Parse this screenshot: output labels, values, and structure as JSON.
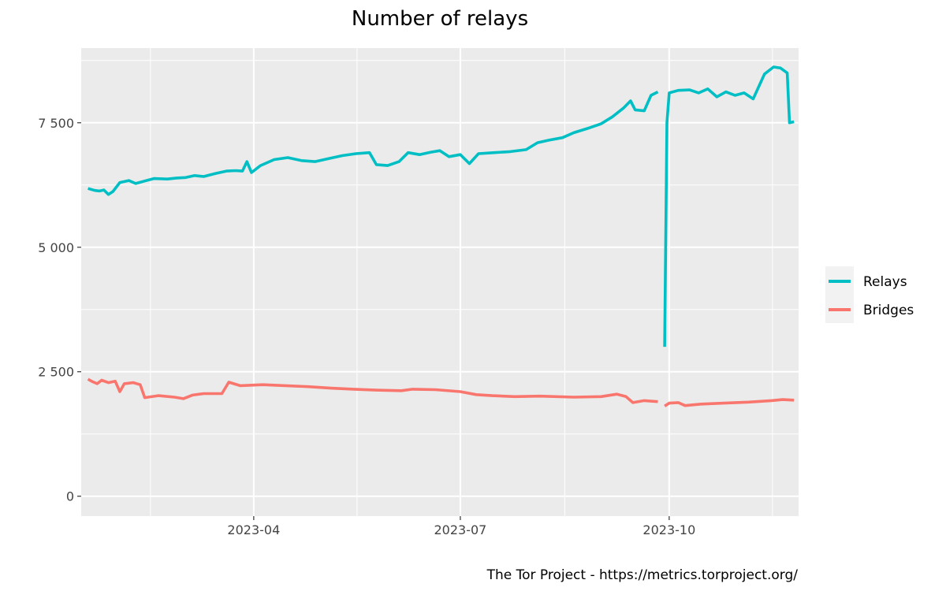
{
  "chart_data": {
    "type": "line",
    "title": "Number of relays",
    "caption": "The Tor Project - https://metrics.torproject.org/",
    "xlabel": "",
    "ylabel": "",
    "xlim": [
      "2023-01-15",
      "2023-11-27"
    ],
    "ylim": [
      -400,
      9000
    ],
    "x_ticks": [
      "2023-04-01",
      "2023-07-01",
      "2023-10-01"
    ],
    "x_tick_labels": [
      "2023-04",
      "2023-07",
      "2023-10"
    ],
    "y_ticks": [
      0,
      2500,
      5000,
      7500
    ],
    "y_tick_labels": [
      "0",
      "2 500",
      "5 000",
      "7 500"
    ],
    "grid": true,
    "legend_position": "right",
    "series": [
      {
        "name": "Relays",
        "color": "#00BFC4",
        "segments": [
          [
            [
              "2023-01-18",
              6180
            ],
            [
              "2023-01-21",
              6140
            ],
            [
              "2023-01-23",
              6130
            ],
            [
              "2023-01-25",
              6150
            ],
            [
              "2023-01-27",
              6060
            ],
            [
              "2023-01-29",
              6120
            ],
            [
              "2023-02-01",
              6300
            ],
            [
              "2023-02-05",
              6340
            ],
            [
              "2023-02-08",
              6280
            ],
            [
              "2023-02-12",
              6330
            ],
            [
              "2023-02-16",
              6380
            ],
            [
              "2023-02-22",
              6370
            ],
            [
              "2023-02-26",
              6390
            ],
            [
              "2023-03-02",
              6400
            ],
            [
              "2023-03-06",
              6440
            ],
            [
              "2023-03-10",
              6420
            ],
            [
              "2023-03-15",
              6480
            ],
            [
              "2023-03-20",
              6530
            ],
            [
              "2023-03-24",
              6540
            ],
            [
              "2023-03-27",
              6530
            ],
            [
              "2023-03-29",
              6720
            ],
            [
              "2023-03-31",
              6500
            ],
            [
              "2023-04-04",
              6640
            ],
            [
              "2023-04-10",
              6760
            ],
            [
              "2023-04-16",
              6800
            ],
            [
              "2023-04-22",
              6740
            ],
            [
              "2023-04-28",
              6720
            ],
            [
              "2023-05-04",
              6780
            ],
            [
              "2023-05-10",
              6840
            ],
            [
              "2023-05-16",
              6880
            ],
            [
              "2023-05-22",
              6900
            ],
            [
              "2023-05-25",
              6660
            ],
            [
              "2023-05-30",
              6640
            ],
            [
              "2023-06-04",
              6720
            ],
            [
              "2023-06-08",
              6900
            ],
            [
              "2023-06-13",
              6860
            ],
            [
              "2023-06-18",
              6910
            ],
            [
              "2023-06-22",
              6940
            ],
            [
              "2023-06-26",
              6820
            ],
            [
              "2023-07-01",
              6860
            ],
            [
              "2023-07-05",
              6680
            ],
            [
              "2023-07-09",
              6880
            ],
            [
              "2023-07-16",
              6900
            ],
            [
              "2023-07-23",
              6920
            ],
            [
              "2023-07-30",
              6960
            ],
            [
              "2023-08-04",
              7100
            ],
            [
              "2023-08-09",
              7150
            ],
            [
              "2023-08-15",
              7200
            ],
            [
              "2023-08-20",
              7300
            ],
            [
              "2023-08-27",
              7400
            ],
            [
              "2023-09-01",
              7480
            ],
            [
              "2023-09-06",
              7620
            ],
            [
              "2023-09-11",
              7800
            ],
            [
              "2023-09-14",
              7940
            ],
            [
              "2023-09-16",
              7760
            ],
            [
              "2023-09-20",
              7740
            ],
            [
              "2023-09-23",
              8050
            ],
            [
              "2023-09-26",
              8120
            ]
          ],
          [
            [
              "2023-09-29",
              3000
            ],
            [
              "2023-09-30",
              7500
            ],
            [
              "2023-10-01",
              8100
            ],
            [
              "2023-10-05",
              8150
            ],
            [
              "2023-10-10",
              8160
            ],
            [
              "2023-10-14",
              8100
            ],
            [
              "2023-10-18",
              8180
            ],
            [
              "2023-10-22",
              8020
            ],
            [
              "2023-10-26",
              8120
            ],
            [
              "2023-10-30",
              8050
            ],
            [
              "2023-11-03",
              8100
            ],
            [
              "2023-11-07",
              7980
            ],
            [
              "2023-11-12",
              8480
            ],
            [
              "2023-11-16",
              8620
            ],
            [
              "2023-11-19",
              8600
            ],
            [
              "2023-11-22",
              8500
            ],
            [
              "2023-11-23",
              7500
            ],
            [
              "2023-11-25",
              7520
            ]
          ]
        ]
      },
      {
        "name": "Bridges",
        "color": "#F8766D",
        "segments": [
          [
            [
              "2023-01-18",
              2350
            ],
            [
              "2023-01-20",
              2300
            ],
            [
              "2023-01-22",
              2260
            ],
            [
              "2023-01-24",
              2330
            ],
            [
              "2023-01-27",
              2280
            ],
            [
              "2023-01-30",
              2310
            ],
            [
              "2023-02-01",
              2100
            ],
            [
              "2023-02-03",
              2260
            ],
            [
              "2023-02-07",
              2280
            ],
            [
              "2023-02-10",
              2240
            ],
            [
              "2023-02-12",
              1980
            ],
            [
              "2023-02-18",
              2020
            ],
            [
              "2023-02-25",
              1990
            ],
            [
              "2023-03-01",
              1960
            ],
            [
              "2023-03-05",
              2030
            ],
            [
              "2023-03-10",
              2060
            ],
            [
              "2023-03-18",
              2060
            ],
            [
              "2023-03-21",
              2290
            ],
            [
              "2023-03-26",
              2220
            ],
            [
              "2023-04-05",
              2240
            ],
            [
              "2023-04-15",
              2220
            ],
            [
              "2023-04-25",
              2200
            ],
            [
              "2023-05-05",
              2170
            ],
            [
              "2023-05-15",
              2150
            ],
            [
              "2023-05-25",
              2130
            ],
            [
              "2023-06-05",
              2120
            ],
            [
              "2023-06-10",
              2150
            ],
            [
              "2023-06-20",
              2140
            ],
            [
              "2023-07-01",
              2100
            ],
            [
              "2023-07-08",
              2040
            ],
            [
              "2023-07-15",
              2020
            ],
            [
              "2023-07-25",
              2000
            ],
            [
              "2023-08-05",
              2010
            ],
            [
              "2023-08-20",
              1990
            ],
            [
              "2023-09-01",
              2000
            ],
            [
              "2023-09-08",
              2050
            ],
            [
              "2023-09-12",
              2000
            ],
            [
              "2023-09-15",
              1880
            ],
            [
              "2023-09-20",
              1920
            ],
            [
              "2023-09-26",
              1900
            ]
          ],
          [
            [
              "2023-09-29",
              1810
            ],
            [
              "2023-10-01",
              1870
            ],
            [
              "2023-10-05",
              1880
            ],
            [
              "2023-10-08",
              1820
            ],
            [
              "2023-10-15",
              1850
            ],
            [
              "2023-10-25",
              1870
            ],
            [
              "2023-11-05",
              1890
            ],
            [
              "2023-11-15",
              1920
            ],
            [
              "2023-11-20",
              1940
            ],
            [
              "2023-11-25",
              1930
            ]
          ]
        ]
      }
    ]
  }
}
